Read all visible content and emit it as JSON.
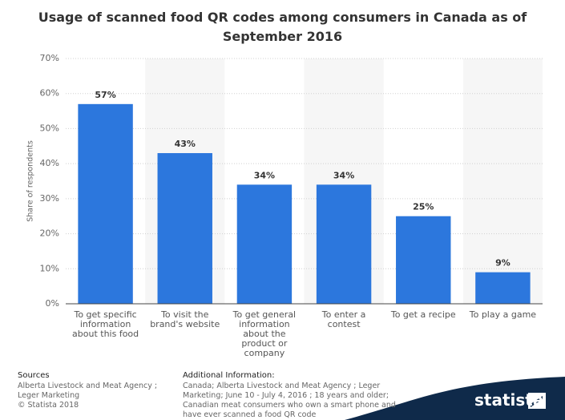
{
  "chart_data": {
    "type": "bar",
    "title": "Usage of scanned food QR codes among consumers in Canada as of September 2016",
    "y_label": "Share of respondents",
    "categories": [
      "To get specific information about this food",
      "To visit the brand's website",
      "To get general information about the product or company",
      "To enter a contest",
      "To get a recipe",
      "To play a game"
    ],
    "values": [
      57,
      43,
      34,
      34,
      25,
      9
    ],
    "value_labels": [
      "57%",
      "43%",
      "34%",
      "34%",
      "25%",
      "9%"
    ],
    "color": "#2c77dd",
    "ylim": [
      0,
      70
    ],
    "yticks": [
      {
        "value": 0,
        "label": "0%"
      },
      {
        "value": 10,
        "label": "10%"
      },
      {
        "value": 20,
        "label": "20%"
      },
      {
        "value": 30,
        "label": "30%"
      },
      {
        "value": 40,
        "label": "40%"
      },
      {
        "value": 50,
        "label": "50%"
      },
      {
        "value": 60,
        "label": "60%"
      },
      {
        "value": 70,
        "label": "70%"
      }
    ],
    "grid": true
  },
  "footer": {
    "sources_title": "Sources",
    "sources": "Alberta Livestock and Meat Agency ; Leger Marketing",
    "copyright": "© Statista 2018",
    "info_title": "Additional Information:",
    "info": "Canada; Alberta Livestock and Meat Agency ; Leger Marketing; June 10 - July 4, 2016 ; 18 years and older; Canadian meat consumers who own a smart phone and have ever scanned a food QR code",
    "logo": "statista"
  }
}
